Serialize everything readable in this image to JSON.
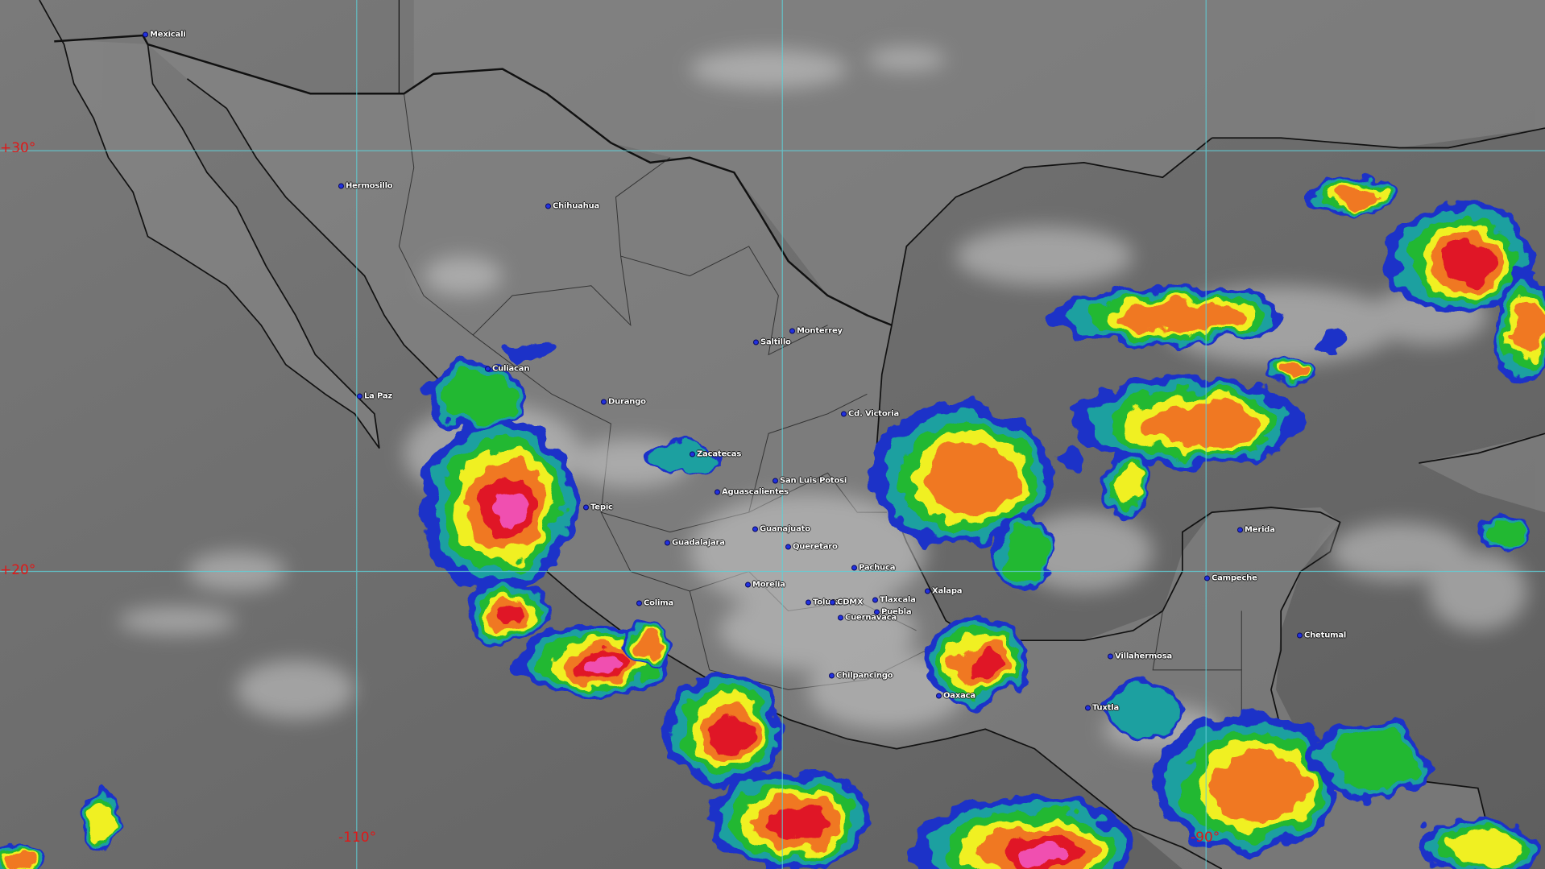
{
  "map": {
    "type": "infrared satellite image",
    "grid_labels": {
      "lat_30": "+30°",
      "lat_20": "+20°",
      "lon_110": "-110°",
      "lon_90": "-90°"
    },
    "grid_color": "#5fd0d8",
    "grid_label_color": "#e01818",
    "cloud_top_colors": [
      "#1e32c8",
      "#1aa0a0",
      "#20b830",
      "#f0f020",
      "#f07820",
      "#e01828",
      "#f050b0"
    ],
    "cities": [
      "Mexicali",
      "Hermosillo",
      "Chihuahua",
      "La Paz",
      "Culiacan",
      "Durango",
      "Saltillo",
      "Monterrey",
      "Cd. Victoria",
      "Zacatecas",
      "San Luis Potosi",
      "Aguascalientes",
      "Tepic",
      "Guadalajara",
      "Guanajuato",
      "Queretaro",
      "Pachuca",
      "Morelia",
      "Colima",
      "Toluca",
      "CDMX",
      "Tlaxcala",
      "Puebla",
      "Cuernavaca",
      "Xalapa",
      "Chilpancingo",
      "Oaxaca",
      "Tuxtla",
      "Villahermosa",
      "Campeche",
      "Merida",
      "Chetumal"
    ]
  }
}
